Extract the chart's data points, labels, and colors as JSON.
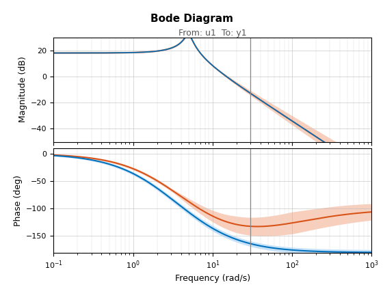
{
  "title": "Bode Diagram",
  "subtitle": "From: u1  To: y1",
  "xlabel": "Frequency (rad/s)",
  "ylabel_mag": "Magnitude (dB)",
  "ylabel_phase": "Phase (deg)",
  "freq_range": [
    0.1,
    1000
  ],
  "vline_freq": 30,
  "color_sysd": "#0072BD",
  "color_sys1c": "#D95319",
  "color_band_sysd_fill": "#5AABF0",
  "color_band_sys1c_fill": "#F0A07A",
  "mag_ylim": [
    -50,
    30
  ],
  "phase_ylim": [
    -180,
    10
  ],
  "mag_yticks": [
    -40,
    -20,
    0,
    20
  ],
  "phase_yticks": [
    -150,
    -100,
    -50,
    0
  ],
  "background_color": "#ffffff"
}
